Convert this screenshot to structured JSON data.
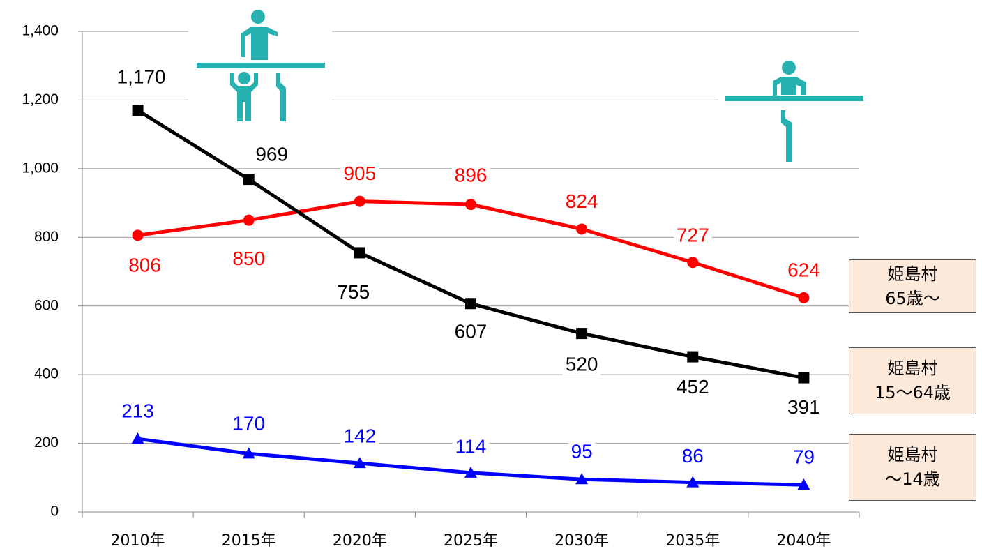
{
  "chart_data": {
    "type": "line",
    "categories": [
      "2010年",
      "2015年",
      "2020年",
      "2025年",
      "2030年",
      "2035年",
      "2040年"
    ],
    "series": [
      {
        "name": "姫島村\n65歳〜",
        "color": "#ff0000",
        "marker": "circle",
        "values": [
          806,
          850,
          905,
          896,
          824,
          727,
          624
        ]
      },
      {
        "name": "姫島村\n15〜64歳",
        "color": "#000000",
        "marker": "square",
        "values": [
          1170,
          969,
          755,
          607,
          520,
          452,
          391
        ]
      },
      {
        "name": "姫島村\n〜14歳",
        "color": "#0000ff",
        "marker": "triangle",
        "values": [
          213,
          170,
          142,
          114,
          95,
          86,
          79
        ]
      }
    ],
    "value_labels": [
      [
        "806",
        "850",
        "905",
        "896",
        "824",
        "727",
        "624"
      ],
      [
        "1,170",
        "969",
        "755",
        "607",
        "520",
        "452",
        "391"
      ],
      [
        "213",
        "170",
        "142",
        "114",
        "95",
        "86",
        "79"
      ]
    ],
    "ylim": [
      0,
      1400
    ],
    "yticks": [
      0,
      200,
      400,
      600,
      800,
      {
        "value": 1000,
        "label": "1,000"
      },
      {
        "value": 1200,
        "label": "1,200"
      },
      {
        "value": 1400,
        "label": "1,400"
      }
    ],
    "grid": true
  }
}
